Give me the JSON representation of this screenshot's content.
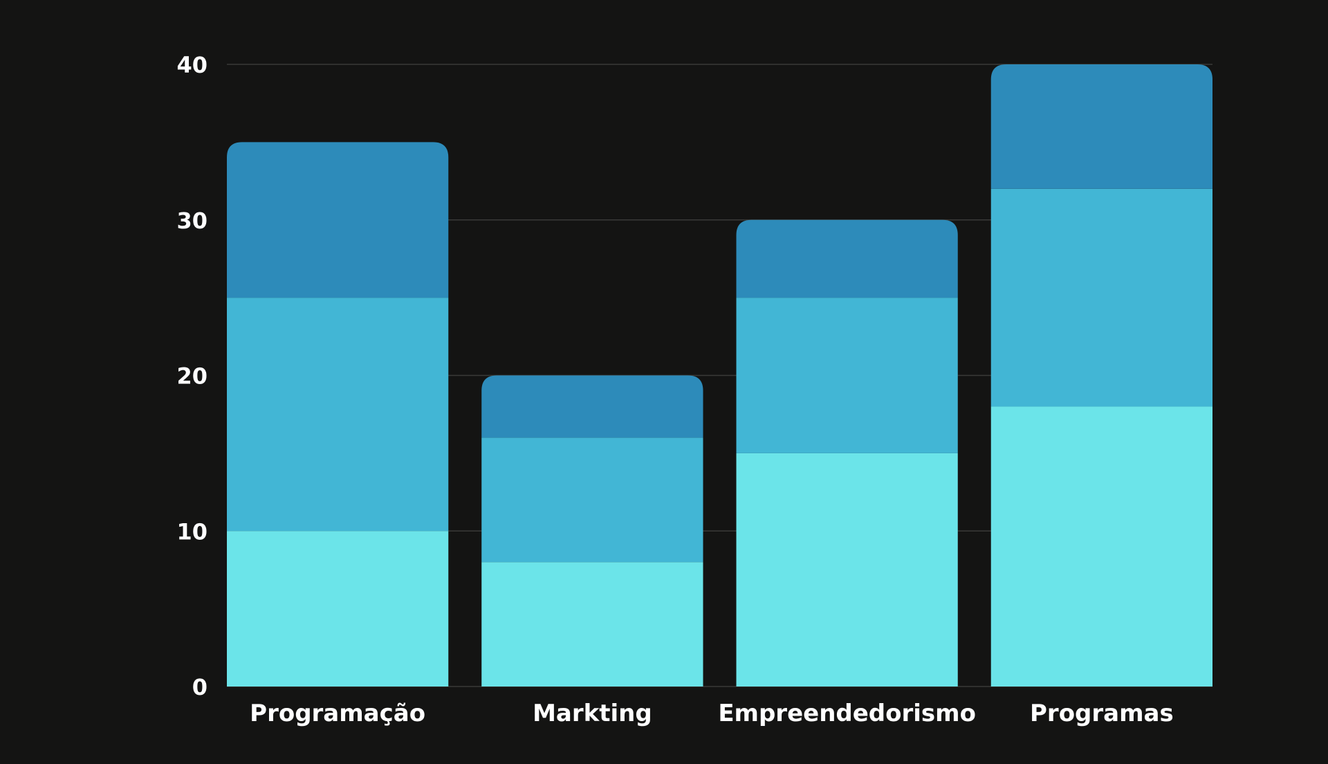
{
  "chart_data": {
    "type": "bar",
    "stacked": true,
    "title": "",
    "xlabel": "",
    "ylabel": "",
    "categories": [
      "Programação",
      "Markting",
      "Empreendedorismo",
      "Programas"
    ],
    "series": [
      {
        "color": "#6be4e9",
        "values": [
          10,
          8,
          15,
          18
        ]
      },
      {
        "color": "#42b6d5",
        "values": [
          15,
          8,
          10,
          14
        ]
      },
      {
        "color": "#2d8bba",
        "values": [
          10,
          4,
          5,
          8
        ]
      }
    ],
    "totals": [
      35,
      20,
      30,
      40
    ],
    "ylim": [
      0,
      40
    ],
    "yticks": [
      "0",
      "10",
      "20",
      "30",
      "40"
    ],
    "grid": true,
    "legend": "none",
    "colors": {
      "background": "#141413",
      "gridline": "#3a3a38",
      "text": "#ffffff"
    }
  }
}
